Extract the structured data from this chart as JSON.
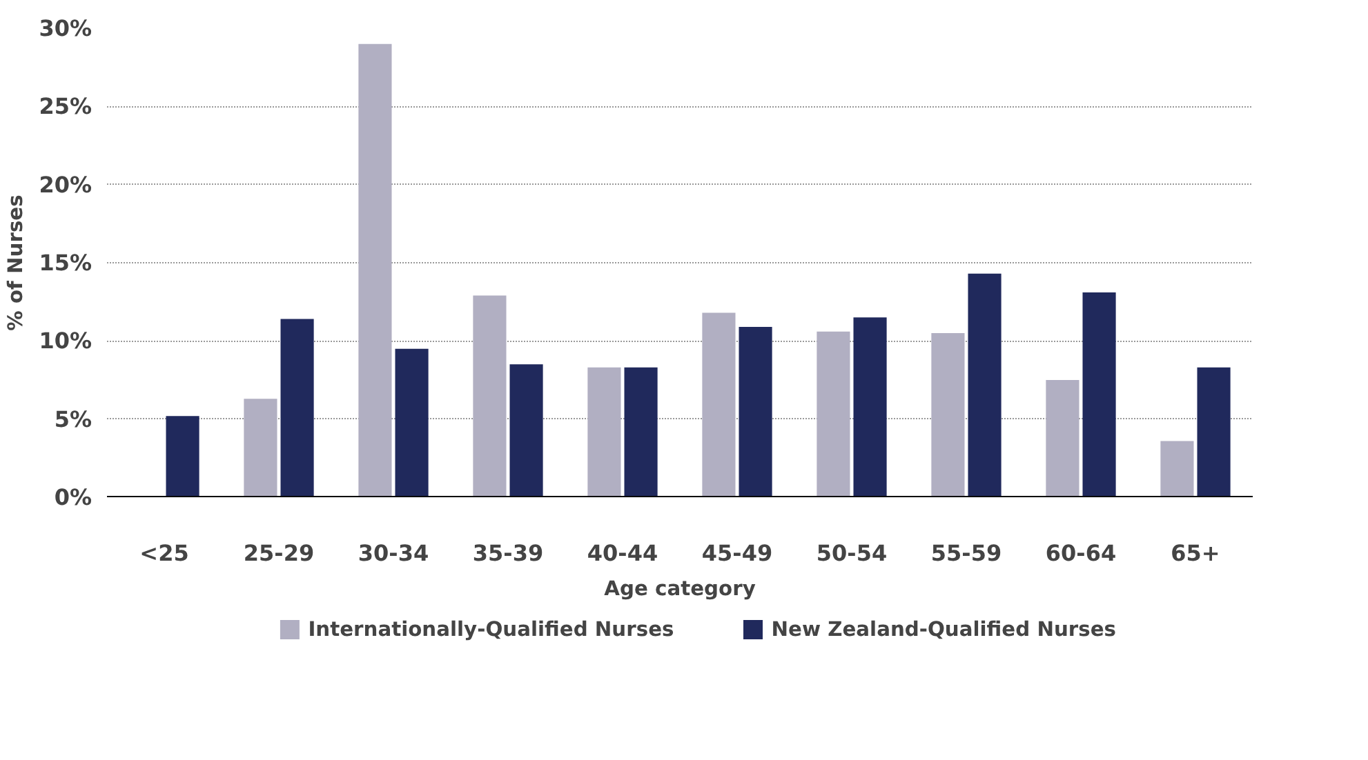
{
  "chart_data": {
    "type": "bar",
    "xlabel": "Age category",
    "ylabel": "% of Nurses",
    "categories": [
      "<25",
      "25-29",
      "30-34",
      "35-39",
      "40-44",
      "45-49",
      "50-54",
      "55-59",
      "60-64",
      "65+"
    ],
    "series": [
      {
        "name": "Internationally-Qualified Nurses",
        "color": "#b1afc2",
        "values": [
          0,
          6.3,
          29.0,
          12.9,
          8.3,
          11.8,
          10.6,
          10.5,
          7.5,
          3.6
        ]
      },
      {
        "name": "New Zealand-Qualified Nurses",
        "color": "#20295c",
        "values": [
          5.2,
          11.4,
          9.5,
          8.5,
          8.3,
          10.9,
          11.5,
          14.3,
          13.1,
          8.3
        ]
      }
    ],
    "ylim": [
      0,
      30
    ],
    "yticks": [
      {
        "value": 0,
        "label": "0%"
      },
      {
        "value": 5,
        "label": "5%"
      },
      {
        "value": 10,
        "label": "10%"
      },
      {
        "value": 15,
        "label": "15%"
      },
      {
        "value": 20,
        "label": "20%"
      },
      {
        "value": 25,
        "label": "25%"
      },
      {
        "value": 30,
        "label": "30%"
      }
    ],
    "grid": "y",
    "legend": "bottom"
  }
}
